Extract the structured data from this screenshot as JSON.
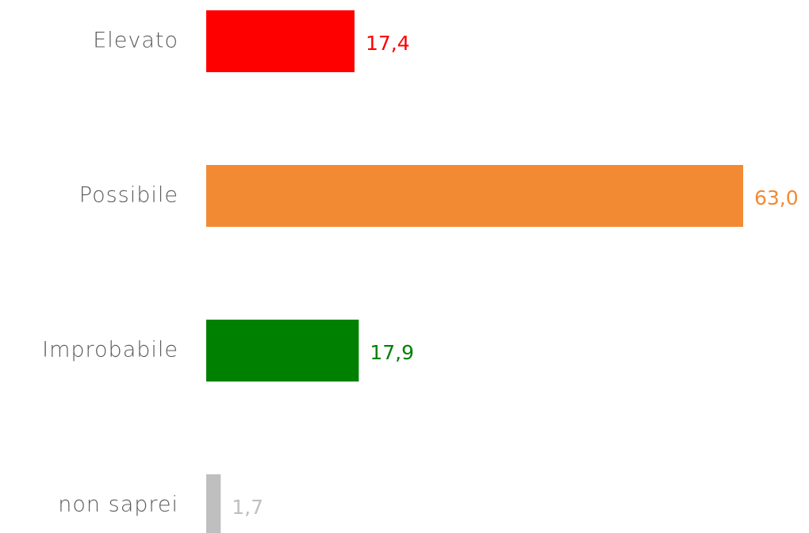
{
  "chart_data": {
    "type": "bar",
    "orientation": "horizontal",
    "categories": [
      "Elevato",
      "Possibile",
      "Improbabile",
      "non saprei"
    ],
    "values": [
      17.4,
      63.0,
      17.9,
      1.7
    ],
    "value_labels": [
      "17,4",
      "63,0",
      "17,9",
      "1,7"
    ],
    "colors": [
      "#ff0000",
      "#f28a33",
      "#008000",
      "#bfbfbf"
    ]
  }
}
